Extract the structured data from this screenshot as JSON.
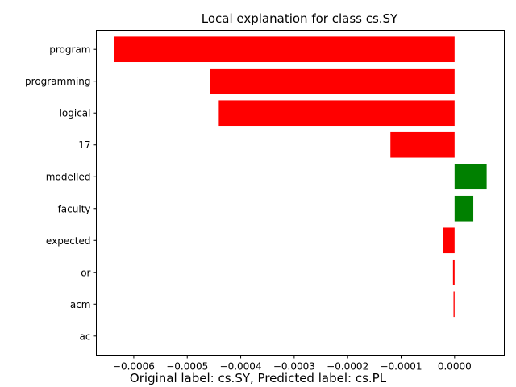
{
  "chart_data": {
    "type": "bar",
    "orientation": "horizontal",
    "title": "Local explanation for class cs.SY",
    "categories": [
      "program",
      "programming",
      "logical",
      "17",
      "modelled",
      "faculty",
      "expected",
      "or",
      "acm",
      "ac"
    ],
    "values": [
      -0.000637,
      -0.000457,
      -0.000441,
      -0.00012,
      6e-05,
      3.5e-05,
      -2.1e-05,
      -3e-06,
      -2e-06,
      0.0
    ],
    "colors": [
      "#ff0000",
      "#ff0000",
      "#ff0000",
      "#ff0000",
      "#008000",
      "#008000",
      "#ff0000",
      "#ff0000",
      "#ff0000",
      "#ff0000"
    ],
    "positive_color": "#008000",
    "negative_color": "#ff0000",
    "xlim": [
      -0.00067,
      9.3e-05
    ],
    "x_ticks": [
      -0.0006,
      -0.0005,
      -0.0004,
      -0.0003,
      -0.0002,
      -0.0001,
      0.0
    ],
    "x_tick_labels": [
      "−0.0006",
      "−0.0005",
      "−0.0004",
      "−0.0003",
      "−0.0002",
      "−0.0001",
      "0.0000"
    ],
    "xlabel": "",
    "ylabel": "",
    "grid": false,
    "legend": "none"
  },
  "caption": "Original label: cs.SY, Predicted label: cs.PL"
}
